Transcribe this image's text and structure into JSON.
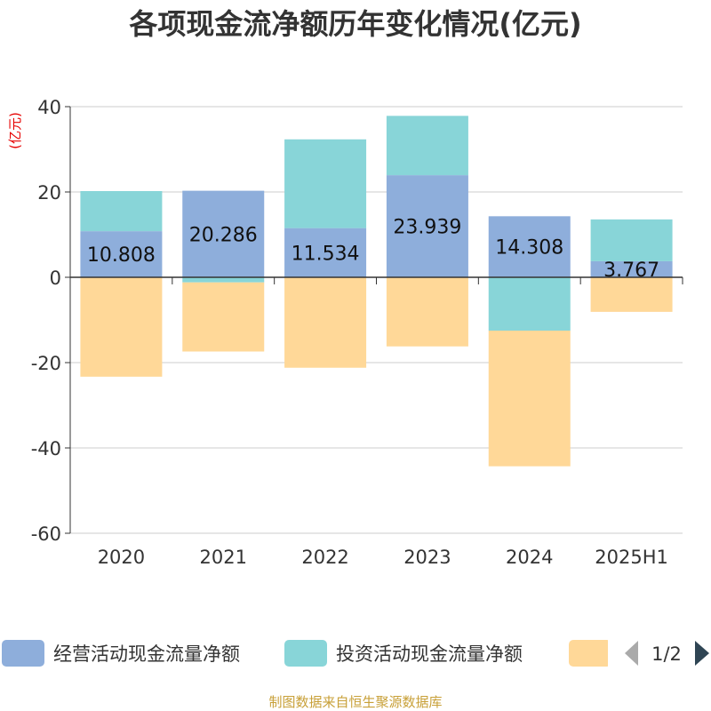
{
  "chart_data": {
    "type": "bar",
    "stacked": true,
    "title": "各项现金流净额历年变化情况(亿元)",
    "unit_label": "(亿元)",
    "categories": [
      "2020",
      "2021",
      "2022",
      "2023",
      "2024",
      "2025H1"
    ],
    "ylim": [
      -60,
      40
    ],
    "yticks": [
      40,
      20,
      0,
      -20,
      -40,
      -60
    ],
    "grid": true,
    "series": [
      {
        "name": "经营活动现金流量净额",
        "color": "#8eaedb",
        "values": [
          10.808,
          20.286,
          11.534,
          23.939,
          14.308,
          3.767
        ],
        "labels": [
          "10.808",
          "20.286",
          "11.534",
          "23.939",
          "14.308",
          "3.767"
        ]
      },
      {
        "name": "投资活动现金流量净额",
        "color": "#88d5d8",
        "values": [
          9.4,
          -1.2,
          20.8,
          13.9,
          -12.5,
          9.8
        ]
      },
      {
        "color": "#ffd898",
        "values": [
          -23.3,
          -16.2,
          -21.2,
          -16.2,
          -31.8,
          -8.1
        ]
      }
    ],
    "legend": {
      "position": "bottom",
      "page": "1/2"
    }
  },
  "footer": {
    "source": "制图数据来自恒生聚源数据库"
  }
}
